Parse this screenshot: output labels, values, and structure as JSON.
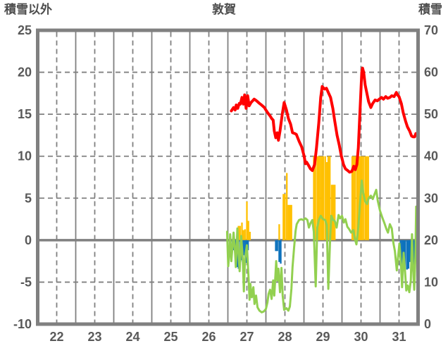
{
  "header": {
    "left_axis_title": "積雪以外",
    "chart_title": "敦賀",
    "right_axis_title": "積雪"
  },
  "chart_data": {
    "type": "combo-bar-line",
    "title": "敦賀",
    "left_axis": {
      "title": "積雪以外",
      "min": -10,
      "max": 25,
      "ticks": [
        25,
        20,
        15,
        10,
        5,
        0,
        -5,
        -10
      ]
    },
    "right_axis": {
      "title": "積雪",
      "min": 0,
      "max": 70,
      "ticks": [
        70,
        60,
        50,
        40,
        30,
        20,
        10,
        0
      ]
    },
    "x_axis": {
      "labels": [
        "22",
        "23",
        "24",
        "25",
        "26",
        "27",
        "28",
        "29",
        "30",
        "31"
      ],
      "start": 22,
      "end": 32
    },
    "grid": {
      "color": "#808080",
      "h_dashed_left_values": [
        20,
        15,
        10,
        5,
        -5
      ],
      "v_solid_days": [
        23,
        24,
        25,
        26,
        27,
        28,
        29,
        30,
        31
      ],
      "v_dashed_days": [
        22.5,
        23.5,
        24.5,
        25.5,
        26.5,
        27.5,
        28.5,
        29.5,
        30.5,
        31.5
      ],
      "zero_line_left_value": 0
    },
    "series": [
      {
        "id": "yellow_bars",
        "type": "bar",
        "axis": "left",
        "color": "#FFC000",
        "bar_hours": 1,
        "points": [
          [
            27.28,
            1.7
          ],
          [
            27.32,
            1.7
          ],
          [
            27.37,
            2.1
          ],
          [
            27.41,
            1.2
          ],
          [
            27.45,
            1.3
          ],
          [
            27.5,
            4.6
          ],
          [
            27.54,
            2.3
          ],
          [
            27.58,
            1.0
          ],
          [
            28.35,
            1.9
          ],
          [
            28.46,
            5.5
          ],
          [
            28.5,
            5.5
          ],
          [
            28.55,
            8.0
          ],
          [
            28.59,
            4.2
          ],
          [
            28.63,
            4.2
          ],
          [
            28.67,
            4.2
          ],
          [
            29.26,
            10
          ],
          [
            29.3,
            10
          ],
          [
            29.35,
            10
          ],
          [
            29.39,
            10
          ],
          [
            29.43,
            10
          ],
          [
            29.47,
            10
          ],
          [
            29.51,
            10
          ],
          [
            29.56,
            10
          ],
          [
            29.6,
            9.3
          ],
          [
            29.64,
            10
          ],
          [
            29.68,
            10
          ],
          [
            29.73,
            6.6
          ],
          [
            29.77,
            6.6
          ],
          [
            29.81,
            6.6
          ],
          [
            30.27,
            10
          ],
          [
            30.31,
            10
          ],
          [
            30.35,
            10
          ],
          [
            30.4,
            10
          ],
          [
            30.44,
            10
          ],
          [
            30.48,
            10
          ],
          [
            30.52,
            10
          ],
          [
            30.56,
            10
          ],
          [
            30.61,
            10
          ],
          [
            30.65,
            10
          ],
          [
            30.69,
            10
          ]
        ]
      },
      {
        "id": "blue_bars",
        "type": "bar",
        "axis": "left",
        "color": "#0D72BC",
        "bar_hours": 1,
        "points": [
          [
            27.12,
            -0.8
          ],
          [
            27.16,
            -1.2
          ],
          [
            27.2,
            -2.0
          ],
          [
            27.24,
            -3.2
          ],
          [
            27.28,
            -3.4
          ],
          [
            27.33,
            -2.6
          ],
          [
            27.37,
            -2.4
          ],
          [
            27.41,
            -1.8
          ],
          [
            27.45,
            -2.6
          ],
          [
            27.49,
            -2.7
          ],
          [
            27.53,
            -1.2
          ],
          [
            28.26,
            -1.3
          ],
          [
            28.3,
            -1.3
          ],
          [
            28.35,
            -2.6
          ],
          [
            28.39,
            -2.8
          ],
          [
            31.54,
            -3.1
          ],
          [
            31.58,
            -3.2
          ],
          [
            31.62,
            -3.4
          ],
          [
            31.66,
            -3.5
          ],
          [
            31.71,
            -3.5
          ],
          [
            31.75,
            -3.4
          ],
          [
            31.79,
            -2.6
          ],
          [
            31.83,
            -2.2
          ],
          [
            31.87,
            -2.3
          ],
          [
            31.91,
            -3.0
          ]
        ]
      },
      {
        "id": "red_line",
        "type": "line",
        "axis": "right",
        "color": "#FF0000",
        "width": 4,
        "points": [
          [
            27.09,
            50.8
          ],
          [
            27.15,
            51.6
          ],
          [
            27.19,
            51.0
          ],
          [
            27.22,
            52.2
          ],
          [
            27.26,
            51.4
          ],
          [
            27.3,
            52.6
          ],
          [
            27.33,
            52.4
          ],
          [
            27.37,
            54.0
          ],
          [
            27.41,
            52.4
          ],
          [
            27.44,
            54.6
          ],
          [
            27.48,
            51.4
          ],
          [
            27.52,
            54.4
          ],
          [
            27.56,
            52.0
          ],
          [
            27.61,
            52.8
          ],
          [
            27.65,
            53.2
          ],
          [
            27.69,
            53.6
          ],
          [
            27.74,
            53.3
          ],
          [
            27.78,
            53.0
          ],
          [
            27.83,
            52.6
          ],
          [
            27.87,
            52.3
          ],
          [
            27.91,
            52.0
          ],
          [
            27.96,
            51.6
          ],
          [
            28.0,
            51.0
          ],
          [
            28.06,
            50.2
          ],
          [
            28.11,
            49.6
          ],
          [
            28.15,
            49.0
          ],
          [
            28.19,
            48.6
          ],
          [
            28.22,
            46.0
          ],
          [
            28.26,
            44.4
          ],
          [
            28.3,
            45.6
          ],
          [
            28.33,
            43.8
          ],
          [
            28.37,
            46.0
          ],
          [
            28.43,
            50.0
          ],
          [
            28.48,
            52.8
          ],
          [
            28.54,
            51.0
          ],
          [
            28.59,
            49.0
          ],
          [
            28.65,
            47.6
          ],
          [
            28.7,
            45.6
          ],
          [
            28.76,
            45.4
          ],
          [
            28.8,
            45.2
          ],
          [
            28.87,
            43.6
          ],
          [
            28.94,
            42.2
          ],
          [
            29.0,
            40.2
          ],
          [
            29.04,
            38.2
          ],
          [
            29.07,
            38.6
          ],
          [
            29.11,
            38.0
          ],
          [
            29.17,
            37.0
          ],
          [
            29.22,
            36.6
          ],
          [
            29.28,
            38.0
          ],
          [
            29.33,
            42.0
          ],
          [
            29.39,
            48.0
          ],
          [
            29.44,
            54.0
          ],
          [
            29.48,
            56.6
          ],
          [
            29.54,
            56.0
          ],
          [
            29.59,
            56.2
          ],
          [
            29.65,
            55.0
          ],
          [
            29.7,
            54.0
          ],
          [
            29.76,
            51.4
          ],
          [
            29.81,
            48.4
          ],
          [
            29.87,
            45.0
          ],
          [
            29.93,
            42.6
          ],
          [
            29.98,
            40.2
          ],
          [
            30.04,
            38.0
          ],
          [
            30.09,
            37.0
          ],
          [
            30.15,
            36.6
          ],
          [
            30.2,
            36.2
          ],
          [
            30.26,
            36.4
          ],
          [
            30.31,
            37.6
          ],
          [
            30.35,
            36.8
          ],
          [
            30.39,
            38.0
          ],
          [
            30.43,
            42.0
          ],
          [
            30.46,
            48.0
          ],
          [
            30.5,
            56.0
          ],
          [
            30.52,
            60.0
          ],
          [
            30.54,
            61.0
          ],
          [
            30.57,
            60.0
          ],
          [
            30.61,
            57.0
          ],
          [
            30.65,
            55.2
          ],
          [
            30.7,
            53.0
          ],
          [
            30.76,
            51.6
          ],
          [
            30.81,
            52.6
          ],
          [
            30.87,
            53.4
          ],
          [
            30.93,
            53.2
          ],
          [
            30.98,
            53.6
          ],
          [
            31.04,
            54.0
          ],
          [
            31.09,
            53.6
          ],
          [
            31.15,
            54.2
          ],
          [
            31.2,
            53.8
          ],
          [
            31.26,
            54.0
          ],
          [
            31.31,
            54.4
          ],
          [
            31.37,
            54.2
          ],
          [
            31.43,
            55.2
          ],
          [
            31.46,
            54.6
          ],
          [
            31.5,
            54.2
          ],
          [
            31.56,
            52.6
          ],
          [
            31.61,
            50.4
          ],
          [
            31.67,
            48.4
          ],
          [
            31.72,
            47.0
          ],
          [
            31.78,
            46.0
          ],
          [
            31.83,
            44.8
          ],
          [
            31.87,
            44.6
          ],
          [
            31.91,
            44.6
          ],
          [
            31.94,
            45.4
          ]
        ]
      },
      {
        "id": "green_line",
        "type": "line",
        "axis": "left",
        "color": "#92D050",
        "width": 3,
        "points": [
          [
            26.98,
            1.0
          ],
          [
            27.01,
            -3.1
          ],
          [
            27.04,
            -1.4
          ],
          [
            27.06,
            0.7
          ],
          [
            27.09,
            -2.5
          ],
          [
            27.12,
            -0.8
          ],
          [
            27.15,
            0.9
          ],
          [
            27.19,
            -1.6
          ],
          [
            27.21,
            -3.2
          ],
          [
            27.25,
            1.4
          ],
          [
            27.28,
            -1.6
          ],
          [
            27.31,
            -3.7
          ],
          [
            27.35,
            0.5
          ],
          [
            27.39,
            -2.2
          ],
          [
            27.42,
            -6.1
          ],
          [
            27.45,
            -2.2
          ],
          [
            27.5,
            -0.6
          ],
          [
            27.54,
            -4.2
          ],
          [
            27.57,
            -7.1
          ],
          [
            27.59,
            -5.2
          ],
          [
            27.63,
            -6.8
          ],
          [
            27.67,
            -5.6
          ],
          [
            27.7,
            -7.6
          ],
          [
            27.74,
            -6.6
          ],
          [
            27.78,
            -8.0
          ],
          [
            27.83,
            -8.4
          ],
          [
            27.89,
            -8.6
          ],
          [
            27.94,
            -8.5
          ],
          [
            28.0,
            -8.2
          ],
          [
            28.04,
            -7.4
          ],
          [
            28.07,
            -6.4
          ],
          [
            28.11,
            -5.9
          ],
          [
            28.15,
            -7.0
          ],
          [
            28.19,
            -4.8
          ],
          [
            28.22,
            -6.6
          ],
          [
            28.27,
            -2.5
          ],
          [
            28.3,
            -4.8
          ],
          [
            28.33,
            -3.4
          ],
          [
            28.37,
            -6.2
          ],
          [
            28.41,
            -3.3
          ],
          [
            28.44,
            -6.6
          ],
          [
            28.48,
            -8.3
          ],
          [
            28.54,
            -8.1
          ],
          [
            28.59,
            -8.4
          ],
          [
            28.63,
            -7.9
          ],
          [
            28.67,
            -5.8
          ],
          [
            28.7,
            -3.2
          ],
          [
            28.74,
            -0.9
          ],
          [
            28.78,
            1.1
          ],
          [
            28.81,
            1.9
          ],
          [
            28.87,
            2.4
          ],
          [
            28.93,
            2.5
          ],
          [
            28.98,
            2.4
          ],
          [
            29.04,
            2.6
          ],
          [
            29.09,
            2.4
          ],
          [
            29.13,
            1.5
          ],
          [
            29.17,
            2.0
          ],
          [
            29.22,
            2.4
          ],
          [
            29.26,
            1.0
          ],
          [
            29.31,
            -5.5
          ],
          [
            29.35,
            1.5
          ],
          [
            29.39,
            2.4
          ],
          [
            29.44,
            2.9
          ],
          [
            29.5,
            2.5
          ],
          [
            29.56,
            2.4
          ],
          [
            29.6,
            1.8
          ],
          [
            29.64,
            -5.8
          ],
          [
            29.69,
            0.5
          ],
          [
            29.72,
            2.9
          ],
          [
            29.77,
            2.4
          ],
          [
            29.81,
            2.3
          ],
          [
            29.86,
            1.5
          ],
          [
            29.91,
            3.0
          ],
          [
            29.95,
            2.6
          ],
          [
            30.0,
            2.9
          ],
          [
            30.05,
            2.1
          ],
          [
            30.09,
            2.5
          ],
          [
            30.14,
            1.6
          ],
          [
            30.19,
            1.3
          ],
          [
            30.24,
            0.9
          ],
          [
            30.3,
            1.2
          ],
          [
            30.33,
            0.3
          ],
          [
            30.38,
            -0.5
          ],
          [
            30.43,
            1.5
          ],
          [
            30.47,
            4.2
          ],
          [
            30.52,
            7.1
          ],
          [
            30.56,
            5.6
          ],
          [
            30.61,
            4.6
          ],
          [
            30.66,
            4.3
          ],
          [
            30.7,
            5.0
          ],
          [
            30.76,
            5.3
          ],
          [
            30.81,
            4.9
          ],
          [
            30.85,
            5.4
          ],
          [
            30.9,
            6.0
          ],
          [
            30.94,
            4.7
          ],
          [
            31.0,
            3.5
          ],
          [
            31.06,
            2.7
          ],
          [
            31.11,
            2.1
          ],
          [
            31.17,
            1.3
          ],
          [
            31.21,
            0.9
          ],
          [
            31.26,
            1.9
          ],
          [
            31.31,
            1.4
          ],
          [
            31.35,
            -0.3
          ],
          [
            31.39,
            -1.3
          ],
          [
            31.44,
            -3.6
          ],
          [
            31.47,
            -2.2
          ],
          [
            31.51,
            -0.4
          ],
          [
            31.55,
            -2.8
          ],
          [
            31.58,
            -5.6
          ],
          [
            31.62,
            -1.5
          ],
          [
            31.66,
            -3.8
          ],
          [
            31.69,
            -6.0
          ],
          [
            31.73,
            -5.4
          ],
          [
            31.77,
            -6.2
          ],
          [
            31.81,
            -4.8
          ],
          [
            31.84,
            0.7
          ],
          [
            31.87,
            -3.5
          ],
          [
            31.9,
            -5.9
          ],
          [
            31.93,
            -2.0
          ],
          [
            31.95,
            4.0
          ]
        ]
      }
    ],
    "layout": {
      "legend": "none",
      "plot_bg": "#ffffff",
      "tick_color": "#595959"
    }
  }
}
